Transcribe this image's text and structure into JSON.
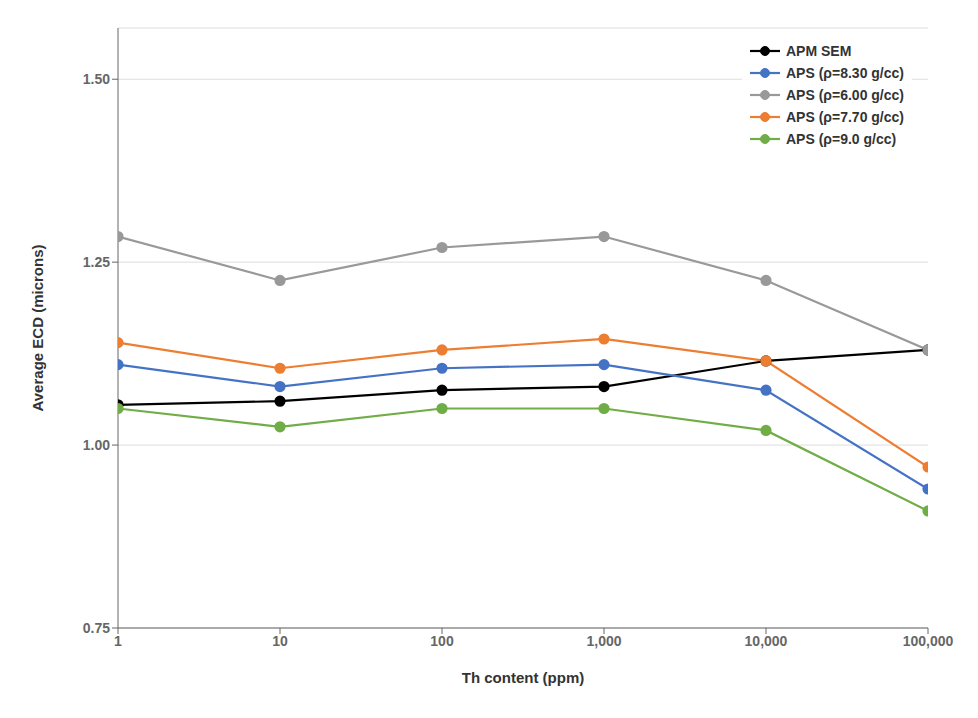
{
  "chart_data": {
    "type": "line",
    "x": [
      1,
      10,
      100,
      1000,
      10000,
      100000
    ],
    "series": [
      {
        "name": "APM SEM",
        "color": "#000000",
        "marker": "circle",
        "values": [
          1.055,
          1.06,
          1.075,
          1.08,
          1.115,
          1.13
        ]
      },
      {
        "name": "APS (ρ=8.30 g/cc)",
        "color": "#4472C4",
        "marker": "circle",
        "values": [
          1.11,
          1.08,
          1.105,
          1.11,
          1.075,
          0.94
        ]
      },
      {
        "name": "APS (ρ=6.00 g/cc)",
        "color": "#999999",
        "marker": "circle",
        "values": [
          1.285,
          1.225,
          1.27,
          1.285,
          1.225,
          1.13
        ]
      },
      {
        "name": "APS (ρ=7.70 g/cc)",
        "color": "#ED7D31",
        "marker": "circle",
        "values": [
          1.14,
          1.105,
          1.13,
          1.145,
          1.115,
          0.97
        ]
      },
      {
        "name": "APS (ρ=9.0 g/cc)",
        "color": "#70AD47",
        "marker": "circle",
        "values": [
          1.05,
          1.025,
          1.05,
          1.05,
          1.02,
          0.91
        ]
      }
    ],
    "x_label": "Th content (ppm)",
    "y_label": "Average ECD (microns)",
    "log": "x",
    "xlim": [
      1,
      100000
    ],
    "xticks": [
      1,
      10,
      100,
      {
        "value": 1000,
        "label": "1,000"
      },
      {
        "value": 10000,
        "label": "10,000"
      },
      {
        "value": 100000,
        "label": "100,000"
      }
    ],
    "ylim": [
      0.75,
      1.57
    ],
    "yticks": [
      0.75,
      {
        "value": 1,
        "label": "1.00"
      },
      1.25,
      {
        "value": 1.5,
        "label": "1.50"
      }
    ],
    "grid": "y",
    "legend": "upper right"
  }
}
